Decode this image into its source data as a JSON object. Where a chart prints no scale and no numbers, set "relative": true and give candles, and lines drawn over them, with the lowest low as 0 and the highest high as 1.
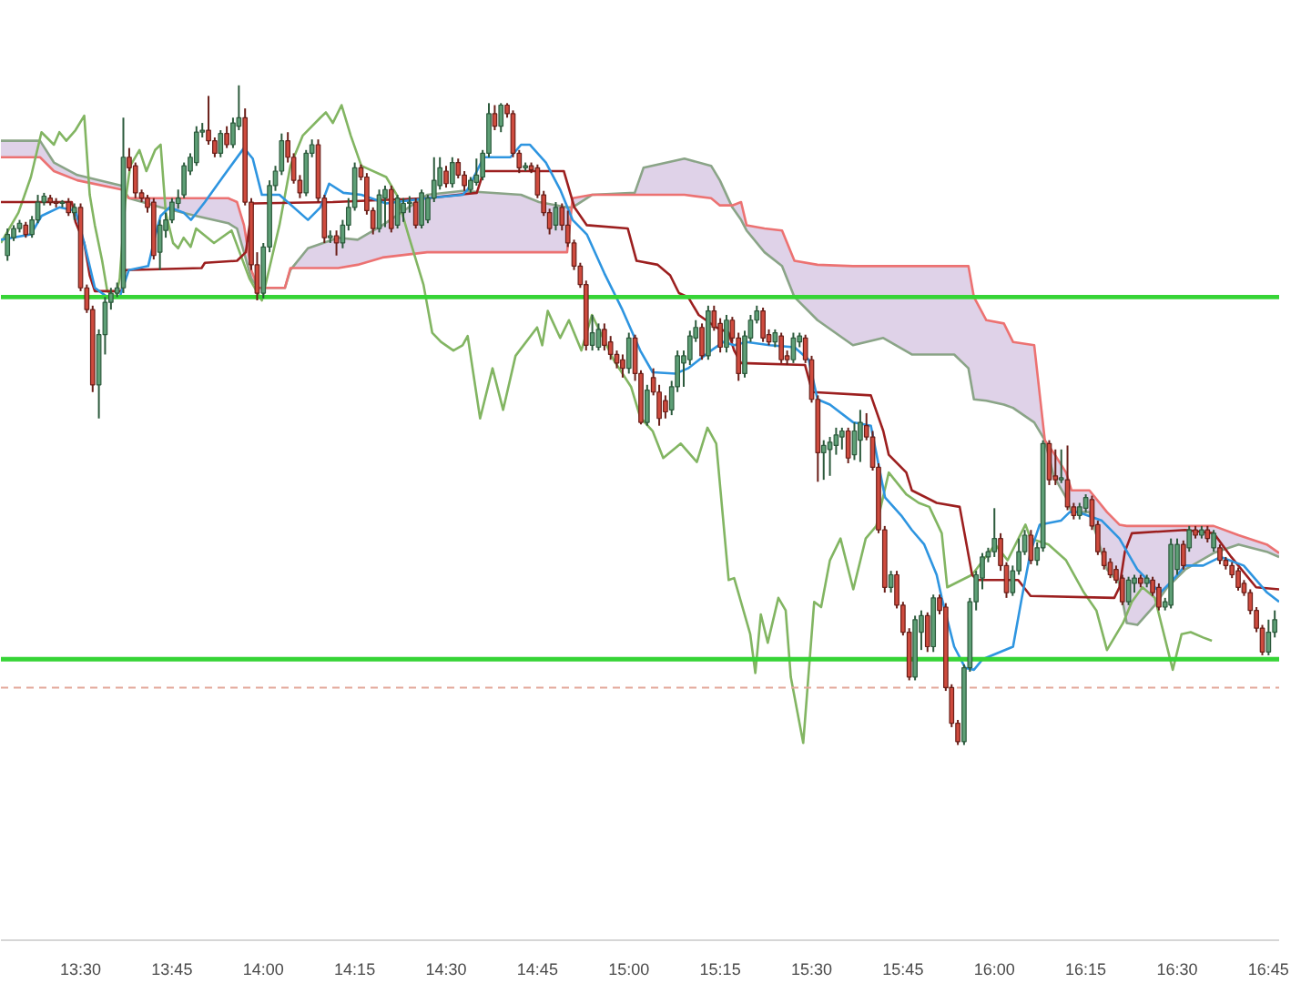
{
  "chart_data": {
    "type": "candlestick",
    "relative": true,
    "tick_labels": "x",
    "xlim": [
      13.282,
      16.779
    ],
    "xticks": [
      {
        "value": 13.5,
        "label": "13:30"
      },
      {
        "value": 13.75,
        "label": "13:45"
      },
      {
        "value": 14,
        "label": "14:00"
      },
      {
        "value": 14.25,
        "label": "14:15"
      },
      {
        "value": 14.5,
        "label": "14:30"
      },
      {
        "value": 14.75,
        "label": "14:45"
      },
      {
        "value": 15,
        "label": "15:00"
      },
      {
        "value": 15.25,
        "label": "15:15"
      },
      {
        "value": 15.5,
        "label": "15:30"
      },
      {
        "value": 15.75,
        "label": "15:45"
      },
      {
        "value": 16,
        "label": "16:00"
      },
      {
        "value": 16.25,
        "label": "16:15"
      },
      {
        "value": 16.5,
        "label": "16:30"
      },
      {
        "value": 16.75,
        "label": "16:45"
      }
    ],
    "x": [
      13.3,
      13.317,
      13.333,
      13.35,
      13.367,
      13.383,
      13.4,
      13.417,
      13.433,
      13.45,
      13.467,
      13.483,
      13.5,
      13.517,
      13.533,
      13.55,
      13.567,
      13.583,
      13.6,
      13.617,
      13.633,
      13.65,
      13.667,
      13.683,
      13.7,
      13.717,
      13.733,
      13.75,
      13.767,
      13.783,
      13.8,
      13.817,
      13.833,
      13.85,
      13.867,
      13.883,
      13.9,
      13.917,
      13.933,
      13.95,
      13.967,
      13.983,
      14.0,
      14.017,
      14.033,
      14.05,
      14.067,
      14.083,
      14.1,
      14.117,
      14.133,
      14.15,
      14.167,
      14.183,
      14.2,
      14.217,
      14.233,
      14.25,
      14.267,
      14.283,
      14.3,
      14.317,
      14.333,
      14.35,
      14.367,
      14.383,
      14.4,
      14.417,
      14.433,
      14.45,
      14.467,
      14.483,
      14.5,
      14.517,
      14.533,
      14.55,
      14.567,
      14.583,
      14.6,
      14.617,
      14.633,
      14.65,
      14.667,
      14.683,
      14.7,
      14.717,
      14.733,
      14.75,
      14.767,
      14.783,
      14.8,
      14.817,
      14.833,
      14.85,
      14.867,
      14.883,
      14.9,
      14.917,
      14.933,
      14.95,
      14.967,
      14.983,
      15.0,
      15.017,
      15.033,
      15.05,
      15.067,
      15.083,
      15.1,
      15.117,
      15.133,
      15.15,
      15.167,
      15.183,
      15.2,
      15.217,
      15.233,
      15.25,
      15.267,
      15.283,
      15.3,
      15.317,
      15.333,
      15.35,
      15.367,
      15.383,
      15.4,
      15.417,
      15.433,
      15.45,
      15.467,
      15.483,
      15.5,
      15.517,
      15.533,
      15.55,
      15.567,
      15.583,
      15.6,
      15.617,
      15.633,
      15.65,
      15.667,
      15.683,
      15.7,
      15.717,
      15.733,
      15.75,
      15.767,
      15.783,
      15.8,
      15.817,
      15.833,
      15.85,
      15.867,
      15.883,
      15.9,
      15.917,
      15.933,
      15.95,
      15.967,
      15.983,
      16.0,
      16.017,
      16.033,
      16.05,
      16.067,
      16.083,
      16.1,
      16.117,
      16.133,
      16.15,
      16.167,
      16.183,
      16.2,
      16.217,
      16.233,
      16.25,
      16.267,
      16.283,
      16.3,
      16.317,
      16.333,
      16.35,
      16.367,
      16.383,
      16.4,
      16.417,
      16.433,
      16.45,
      16.467,
      16.483,
      16.5,
      16.517,
      16.533,
      16.55,
      16.567,
      16.583,
      16.6,
      16.617,
      16.633,
      16.65,
      16.667,
      16.683,
      16.7,
      16.717,
      16.733,
      16.75,
      16.767
    ],
    "ohlc": [
      [
        0.742,
        0.783,
        0.734,
        0.774
      ],
      [
        0.769,
        0.788,
        0.764,
        0.783
      ],
      [
        0.783,
        0.796,
        0.777,
        0.791
      ],
      [
        0.788,
        0.793,
        0.769,
        0.774
      ],
      [
        0.774,
        0.802,
        0.769,
        0.796
      ],
      [
        0.796,
        0.834,
        0.791,
        0.823
      ],
      [
        0.823,
        0.837,
        0.818,
        0.832
      ],
      [
        0.829,
        0.834,
        0.818,
        0.823
      ],
      [
        0.823,
        0.829,
        0.815,
        0.821
      ],
      [
        0.821,
        0.826,
        0.815,
        0.823
      ],
      [
        0.823,
        0.829,
        0.802,
        0.807
      ],
      [
        0.807,
        0.821,
        0.796,
        0.815
      ],
      [
        0.815,
        0.821,
        0.688,
        0.693
      ],
      [
        0.693,
        0.698,
        0.655,
        0.66
      ],
      [
        0.66,
        0.666,
        0.535,
        0.546
      ],
      [
        0.546,
        0.63,
        0.495,
        0.622
      ],
      [
        0.622,
        0.679,
        0.592,
        0.671
      ],
      [
        0.671,
        0.693,
        0.66,
        0.685
      ],
      [
        0.685,
        0.701,
        0.679,
        0.693
      ],
      [
        0.693,
        0.951,
        0.685,
        0.891
      ],
      [
        0.891,
        0.905,
        0.87,
        0.875
      ],
      [
        0.878,
        0.883,
        0.829,
        0.837
      ],
      [
        0.837,
        0.842,
        0.823,
        0.829
      ],
      [
        0.829,
        0.834,
        0.807,
        0.815
      ],
      [
        0.823,
        0.829,
        0.736,
        0.742
      ],
      [
        0.747,
        0.796,
        0.72,
        0.788
      ],
      [
        0.78,
        0.807,
        0.769,
        0.796
      ],
      [
        0.796,
        0.829,
        0.791,
        0.823
      ],
      [
        0.821,
        0.842,
        0.813,
        0.829
      ],
      [
        0.834,
        0.883,
        0.829,
        0.878
      ],
      [
        0.87,
        0.897,
        0.864,
        0.891
      ],
      [
        0.883,
        0.938,
        0.878,
        0.929
      ],
      [
        0.929,
        0.943,
        0.921,
        0.932
      ],
      [
        0.932,
        0.984,
        0.91,
        0.916
      ],
      [
        0.916,
        0.921,
        0.891,
        0.897
      ],
      [
        0.897,
        0.932,
        0.891,
        0.927
      ],
      [
        0.927,
        0.938,
        0.905,
        0.91
      ],
      [
        0.91,
        0.951,
        0.905,
        0.943
      ],
      [
        0.938,
        1.0,
        0.932,
        0.951
      ],
      [
        0.951,
        0.965,
        0.818,
        0.823
      ],
      [
        0.823,
        0.829,
        0.72,
        0.728
      ],
      [
        0.728,
        0.747,
        0.674,
        0.685
      ],
      [
        0.685,
        0.761,
        0.677,
        0.755
      ],
      [
        0.755,
        0.856,
        0.747,
        0.848
      ],
      [
        0.848,
        0.878,
        0.84,
        0.87
      ],
      [
        0.87,
        0.927,
        0.864,
        0.916
      ],
      [
        0.916,
        0.929,
        0.883,
        0.891
      ],
      [
        0.891,
        0.897,
        0.851,
        0.856
      ],
      [
        0.856,
        0.864,
        0.829,
        0.837
      ],
      [
        0.837,
        0.902,
        0.832,
        0.897
      ],
      [
        0.897,
        0.918,
        0.891,
        0.91
      ],
      [
        0.91,
        0.918,
        0.823,
        0.829
      ],
      [
        0.829,
        0.834,
        0.761,
        0.769
      ],
      [
        0.769,
        0.78,
        0.761,
        0.772
      ],
      [
        0.772,
        0.78,
        0.742,
        0.761
      ],
      [
        0.761,
        0.796,
        0.753,
        0.788
      ],
      [
        0.788,
        0.829,
        0.78,
        0.815
      ],
      [
        0.815,
        0.883,
        0.81,
        0.875
      ],
      [
        0.875,
        0.88,
        0.856,
        0.861
      ],
      [
        0.861,
        0.867,
        0.804,
        0.81
      ],
      [
        0.81,
        0.815,
        0.774,
        0.783
      ],
      [
        0.783,
        0.842,
        0.777,
        0.834
      ],
      [
        0.829,
        0.848,
        0.785,
        0.842
      ],
      [
        0.842,
        0.848,
        0.777,
        0.783
      ],
      [
        0.788,
        0.834,
        0.783,
        0.829
      ],
      [
        0.807,
        0.829,
        0.793,
        0.821
      ],
      [
        0.821,
        0.832,
        0.807,
        0.823
      ],
      [
        0.823,
        0.829,
        0.783,
        0.788
      ],
      [
        0.788,
        0.842,
        0.783,
        0.837
      ],
      [
        0.796,
        0.834,
        0.791,
        0.829
      ],
      [
        0.829,
        0.891,
        0.823,
        0.856
      ],
      [
        0.848,
        0.891,
        0.842,
        0.875
      ],
      [
        0.87,
        0.878,
        0.845,
        0.851
      ],
      [
        0.851,
        0.891,
        0.845,
        0.883
      ],
      [
        0.883,
        0.889,
        0.859,
        0.864
      ],
      [
        0.864,
        0.87,
        0.84,
        0.848
      ],
      [
        0.842,
        0.861,
        0.837,
        0.856
      ],
      [
        0.853,
        0.889,
        0.848,
        0.864
      ],
      [
        0.861,
        0.902,
        0.856,
        0.897
      ],
      [
        0.897,
        0.973,
        0.891,
        0.957
      ],
      [
        0.957,
        0.97,
        0.932,
        0.938
      ],
      [
        0.938,
        0.973,
        0.929,
        0.97
      ],
      [
        0.97,
        0.973,
        0.951,
        0.957
      ],
      [
        0.957,
        0.962,
        0.891,
        0.897
      ],
      [
        0.897,
        0.902,
        0.867,
        0.875
      ],
      [
        0.875,
        0.883,
        0.87,
        0.878
      ],
      [
        0.878,
        0.883,
        0.867,
        0.872
      ],
      [
        0.875,
        0.88,
        0.829,
        0.834
      ],
      [
        0.834,
        0.84,
        0.802,
        0.807
      ],
      [
        0.807,
        0.813,
        0.774,
        0.783
      ],
      [
        0.788,
        0.823,
        0.78,
        0.815
      ],
      [
        0.815,
        0.821,
        0.78,
        0.788
      ],
      [
        0.788,
        0.81,
        0.755,
        0.761
      ],
      [
        0.761,
        0.766,
        0.72,
        0.726
      ],
      [
        0.726,
        0.731,
        0.693,
        0.698
      ],
      [
        0.698,
        0.704,
        0.598,
        0.606
      ],
      [
        0.606,
        0.652,
        0.598,
        0.625
      ],
      [
        0.603,
        0.639,
        0.598,
        0.63
      ],
      [
        0.63,
        0.639,
        0.598,
        0.606
      ],
      [
        0.611,
        0.62,
        0.584,
        0.592
      ],
      [
        0.592,
        0.598,
        0.571,
        0.579
      ],
      [
        0.584,
        0.592,
        0.557,
        0.571
      ],
      [
        0.571,
        0.625,
        0.563,
        0.617
      ],
      [
        0.617,
        0.622,
        0.552,
        0.563
      ],
      [
        0.563,
        0.568,
        0.486,
        0.489
      ],
      [
        0.489,
        0.546,
        0.484,
        0.538
      ],
      [
        0.557,
        0.571,
        0.53,
        0.535
      ],
      [
        0.535,
        0.546,
        0.484,
        0.495
      ],
      [
        0.522,
        0.53,
        0.495,
        0.505
      ],
      [
        0.508,
        0.552,
        0.5,
        0.543
      ],
      [
        0.543,
        0.598,
        0.535,
        0.59
      ],
      [
        0.579,
        0.598,
        0.543,
        0.59
      ],
      [
        0.584,
        0.628,
        0.576,
        0.62
      ],
      [
        0.617,
        0.644,
        0.611,
        0.633
      ],
      [
        0.633,
        0.639,
        0.584,
        0.59
      ],
      [
        0.59,
        0.666,
        0.584,
        0.658
      ],
      [
        0.658,
        0.666,
        0.628,
        0.633
      ],
      [
        0.639,
        0.647,
        0.595,
        0.603
      ],
      [
        0.603,
        0.652,
        0.595,
        0.644
      ],
      [
        0.644,
        0.649,
        0.611,
        0.617
      ],
      [
        0.617,
        0.625,
        0.552,
        0.563
      ],
      [
        0.563,
        0.628,
        0.557,
        0.62
      ],
      [
        0.617,
        0.652,
        0.611,
        0.644
      ],
      [
        0.644,
        0.666,
        0.639,
        0.658
      ],
      [
        0.658,
        0.663,
        0.611,
        0.617
      ],
      [
        0.622,
        0.63,
        0.606,
        0.611
      ],
      [
        0.611,
        0.63,
        0.603,
        0.625
      ],
      [
        0.62,
        0.625,
        0.579,
        0.584
      ],
      [
        0.59,
        0.598,
        0.576,
        0.584
      ],
      [
        0.584,
        0.625,
        0.579,
        0.617
      ],
      [
        0.611,
        0.625,
        0.603,
        0.62
      ],
      [
        0.617,
        0.622,
        0.579,
        0.584
      ],
      [
        0.584,
        0.59,
        0.519,
        0.524
      ],
      [
        0.524,
        0.53,
        0.399,
        0.443
      ],
      [
        0.443,
        0.462,
        0.402,
        0.454
      ],
      [
        0.448,
        0.467,
        0.408,
        0.459
      ],
      [
        0.454,
        0.481,
        0.44,
        0.47
      ],
      [
        0.467,
        0.481,
        0.448,
        0.476
      ],
      [
        0.476,
        0.481,
        0.427,
        0.435
      ],
      [
        0.44,
        0.489,
        0.432,
        0.476
      ],
      [
        0.462,
        0.508,
        0.429,
        0.489
      ],
      [
        0.484,
        0.503,
        0.462,
        0.467
      ],
      [
        0.467,
        0.476,
        0.416,
        0.421
      ],
      [
        0.421,
        0.427,
        0.321,
        0.326
      ],
      [
        0.326,
        0.332,
        0.231,
        0.239
      ],
      [
        0.239,
        0.264,
        0.231,
        0.258
      ],
      [
        0.258,
        0.264,
        0.207,
        0.212
      ],
      [
        0.212,
        0.217,
        0.166,
        0.171
      ],
      [
        0.171,
        0.177,
        0.098,
        0.103
      ],
      [
        0.103,
        0.196,
        0.098,
        0.19
      ],
      [
        0.171,
        0.204,
        0.144,
        0.196
      ],
      [
        0.196,
        0.201,
        0.141,
        0.149
      ],
      [
        0.149,
        0.228,
        0.141,
        0.223
      ],
      [
        0.223,
        0.228,
        0.198,
        0.204
      ],
      [
        0.209,
        0.215,
        0.082,
        0.087
      ],
      [
        0.087,
        0.092,
        0.027,
        0.033
      ],
      [
        0.033,
        0.038,
        0.0,
        0.005
      ],
      [
        0.005,
        0.122,
        0.0,
        0.117
      ],
      [
        0.117,
        0.223,
        0.111,
        0.217
      ],
      [
        0.217,
        0.264,
        0.204,
        0.258
      ],
      [
        0.253,
        0.291,
        0.236,
        0.285
      ],
      [
        0.285,
        0.299,
        0.277,
        0.293
      ],
      [
        0.293,
        0.359,
        0.285,
        0.313
      ],
      [
        0.313,
        0.321,
        0.264,
        0.272
      ],
      [
        0.272,
        0.277,
        0.223,
        0.231
      ],
      [
        0.231,
        0.272,
        0.226,
        0.264
      ],
      [
        0.264,
        0.313,
        0.258,
        0.293
      ],
      [
        0.293,
        0.326,
        0.288,
        0.318
      ],
      [
        0.318,
        0.326,
        0.274,
        0.28
      ],
      [
        0.28,
        0.307,
        0.272,
        0.299
      ],
      [
        0.299,
        0.462,
        0.293,
        0.457
      ],
      [
        0.457,
        0.462,
        0.394,
        0.402
      ],
      [
        0.408,
        0.448,
        0.394,
        0.402
      ],
      [
        0.402,
        0.448,
        0.397,
        0.405
      ],
      [
        0.402,
        0.454,
        0.356,
        0.361
      ],
      [
        0.361,
        0.367,
        0.342,
        0.348
      ],
      [
        0.348,
        0.367,
        0.342,
        0.361
      ],
      [
        0.359,
        0.38,
        0.353,
        0.375
      ],
      [
        0.372,
        0.378,
        0.326,
        0.332
      ],
      [
        0.334,
        0.34,
        0.288,
        0.293
      ],
      [
        0.293,
        0.299,
        0.266,
        0.272
      ],
      [
        0.277,
        0.283,
        0.253,
        0.258
      ],
      [
        0.266,
        0.272,
        0.245,
        0.25
      ],
      [
        0.253,
        0.258,
        0.212,
        0.217
      ],
      [
        0.217,
        0.255,
        0.212,
        0.25
      ],
      [
        0.245,
        0.258,
        0.231,
        0.253
      ],
      [
        0.253,
        0.258,
        0.239,
        0.245
      ],
      [
        0.245,
        0.258,
        0.239,
        0.253
      ],
      [
        0.25,
        0.255,
        0.226,
        0.231
      ],
      [
        0.239,
        0.245,
        0.204,
        0.209
      ],
      [
        0.209,
        0.223,
        0.204,
        0.217
      ],
      [
        0.212,
        0.313,
        0.207,
        0.304
      ],
      [
        0.266,
        0.313,
        0.258,
        0.304
      ],
      [
        0.304,
        0.31,
        0.266,
        0.272
      ],
      [
        0.299,
        0.332,
        0.293,
        0.326
      ],
      [
        0.326,
        0.332,
        0.313,
        0.318
      ],
      [
        0.318,
        0.332,
        0.313,
        0.326
      ],
      [
        0.326,
        0.332,
        0.307,
        0.313
      ],
      [
        0.299,
        0.326,
        0.293,
        0.321
      ],
      [
        0.299,
        0.304,
        0.274,
        0.28
      ],
      [
        0.28,
        0.285,
        0.266,
        0.272
      ],
      [
        0.272,
        0.277,
        0.253,
        0.258
      ],
      [
        0.264,
        0.269,
        0.234,
        0.239
      ],
      [
        0.245,
        0.25,
        0.226,
        0.231
      ],
      [
        0.231,
        0.236,
        0.198,
        0.204
      ],
      [
        0.204,
        0.209,
        0.171,
        0.177
      ],
      [
        0.177,
        0.182,
        0.136,
        0.141
      ],
      [
        0.141,
        0.19,
        0.136,
        0.171
      ],
      [
        0.171,
        0.204,
        0.163,
        0.19
      ]
    ],
    "series": [
      {
        "type": "line",
        "color": "#8aa487",
        "x": [
          13.282,
          13.389,
          13.427,
          13.491,
          13.612,
          13.632,
          13.719,
          13.816,
          13.904,
          13.928,
          13.947,
          13.967,
          13.986,
          14.059,
          14.074,
          14.122,
          14.205,
          14.258,
          14.326,
          14.448,
          14.545,
          14.705,
          14.754,
          14.831,
          14.846,
          14.899,
          15.016,
          15.04,
          15.152,
          15.225,
          15.249,
          15.283,
          15.307,
          15.322,
          15.371,
          15.419,
          15.453,
          15.516,
          15.613,
          15.696,
          15.774,
          15.89,
          15.929,
          15.944,
          15.978,
          16.026,
          16.051,
          16.109,
          16.138,
          16.162,
          16.196,
          16.211,
          16.26,
          16.308,
          16.342,
          16.362,
          16.391,
          16.439,
          16.473,
          16.522,
          16.6,
          16.668,
          16.745,
          16.779
        ],
        "values": [
          0.916,
          0.916,
          0.883,
          0.864,
          0.848,
          0.829,
          0.815,
          0.802,
          0.791,
          0.783,
          0.747,
          0.707,
          0.693,
          0.693,
          0.72,
          0.753,
          0.769,
          0.766,
          0.788,
          0.834,
          0.84,
          0.834,
          0.823,
          0.815,
          0.815,
          0.834,
          0.837,
          0.875,
          0.889,
          0.878,
          0.856,
          0.815,
          0.796,
          0.78,
          0.747,
          0.726,
          0.679,
          0.644,
          0.606,
          0.617,
          0.592,
          0.592,
          0.571,
          0.524,
          0.522,
          0.516,
          0.511,
          0.489,
          0.462,
          0.408,
          0.375,
          0.353,
          0.353,
          0.266,
          0.245,
          0.185,
          0.182,
          0.212,
          0.239,
          0.266,
          0.291,
          0.304,
          0.293,
          0.285
        ]
      },
      {
        "type": "line",
        "color": "#ec7272",
        "x": [
          13.282,
          13.389,
          13.427,
          13.491,
          13.612,
          13.632,
          13.719,
          13.816,
          13.904,
          13.928,
          13.947,
          13.967,
          13.986,
          14.059,
          14.074,
          14.122,
          14.205,
          14.258,
          14.326,
          14.448,
          14.545,
          14.705,
          14.754,
          14.831,
          14.846,
          14.899,
          15.016,
          15.04,
          15.152,
          15.225,
          15.249,
          15.283,
          15.307,
          15.322,
          15.371,
          15.419,
          15.453,
          15.516,
          15.613,
          15.696,
          15.774,
          15.89,
          15.929,
          15.944,
          15.978,
          16.026,
          16.051,
          16.109,
          16.138,
          16.162,
          16.196,
          16.211,
          16.26,
          16.308,
          16.342,
          16.362,
          16.391,
          16.439,
          16.473,
          16.522,
          16.6,
          16.668,
          16.745,
          16.779
        ],
        "values": [
          0.891,
          0.891,
          0.87,
          0.856,
          0.842,
          0.829,
          0.829,
          0.829,
          0.829,
          0.823,
          0.788,
          0.72,
          0.693,
          0.693,
          0.723,
          0.723,
          0.723,
          0.728,
          0.739,
          0.747,
          0.747,
          0.747,
          0.747,
          0.747,
          0.829,
          0.834,
          0.834,
          0.834,
          0.834,
          0.829,
          0.818,
          0.818,
          0.823,
          0.788,
          0.783,
          0.78,
          0.734,
          0.728,
          0.726,
          0.726,
          0.726,
          0.726,
          0.726,
          0.679,
          0.644,
          0.639,
          0.611,
          0.606,
          0.462,
          0.443,
          0.413,
          0.386,
          0.386,
          0.353,
          0.334,
          0.332,
          0.332,
          0.332,
          0.332,
          0.332,
          0.332,
          0.318,
          0.304,
          0.291
        ],
        "lower": [
          0.916,
          0.916,
          0.883,
          0.864,
          0.848,
          0.829,
          0.815,
          0.802,
          0.791,
          0.783,
          0.747,
          0.707,
          0.693,
          0.693,
          0.72,
          0.753,
          0.769,
          0.766,
          0.788,
          0.834,
          0.84,
          0.834,
          0.823,
          0.815,
          0.815,
          0.834,
          0.837,
          0.875,
          0.889,
          0.878,
          0.856,
          0.815,
          0.796,
          0.78,
          0.747,
          0.726,
          0.679,
          0.644,
          0.606,
          0.617,
          0.592,
          0.592,
          0.571,
          0.524,
          0.522,
          0.516,
          0.511,
          0.489,
          0.462,
          0.408,
          0.375,
          0.353,
          0.353,
          0.266,
          0.245,
          0.185,
          0.182,
          0.212,
          0.239,
          0.266,
          0.291,
          0.304,
          0.293,
          0.285
        ],
        "upper": [
          0.891,
          0.891,
          0.87,
          0.856,
          0.842,
          0.829,
          0.829,
          0.829,
          0.829,
          0.823,
          0.788,
          0.72,
          0.693,
          0.693,
          0.723,
          0.723,
          0.723,
          0.728,
          0.739,
          0.747,
          0.747,
          0.747,
          0.747,
          0.747,
          0.829,
          0.834,
          0.834,
          0.834,
          0.834,
          0.829,
          0.818,
          0.818,
          0.823,
          0.788,
          0.783,
          0.78,
          0.734,
          0.728,
          0.726,
          0.726,
          0.726,
          0.726,
          0.726,
          0.679,
          0.644,
          0.639,
          0.611,
          0.606,
          0.462,
          0.443,
          0.413,
          0.386,
          0.386,
          0.353,
          0.334,
          0.332,
          0.332,
          0.332,
          0.332,
          0.332,
          0.332,
          0.318,
          0.304,
          0.291
        ]
      },
      {
        "type": "line",
        "color": "#82b562",
        "x": [
          13.282,
          13.33,
          13.364,
          13.393,
          13.427,
          13.442,
          13.461,
          13.486,
          13.51,
          13.525,
          13.539,
          13.559,
          13.573,
          13.597,
          13.607,
          13.622,
          13.636,
          13.661,
          13.68,
          13.704,
          13.719,
          13.733,
          13.753,
          13.767,
          13.782,
          13.801,
          13.816,
          13.865,
          13.913,
          13.962,
          13.996,
          14.044,
          14.074,
          14.108,
          14.156,
          14.171,
          14.19,
          14.214,
          14.239,
          14.268,
          14.336,
          14.365,
          14.399,
          14.438,
          14.462,
          14.486,
          14.52,
          14.545,
          14.559,
          14.593,
          14.627,
          14.656,
          14.69,
          14.749,
          14.763,
          14.778,
          14.812,
          14.836,
          14.87,
          14.899,
          14.958,
          15.006,
          15.031,
          15.065,
          15.094,
          15.142,
          15.186,
          15.215,
          15.239,
          15.273,
          15.288,
          15.332,
          15.346,
          15.361,
          15.38,
          15.409,
          15.429,
          15.443,
          15.477,
          15.507,
          15.526,
          15.55,
          15.579,
          15.614,
          15.648,
          15.677,
          15.711,
          15.759,
          15.793,
          15.822,
          15.856,
          15.871,
          15.939,
          16.002,
          16.036,
          16.085,
          16.099,
          16.148,
          16.196,
          16.245,
          16.279,
          16.308,
          16.352,
          16.376,
          16.405,
          16.439,
          16.488,
          16.512,
          16.537,
          16.571,
          16.595
        ],
        "values": [
          0.761,
          0.807,
          0.861,
          0.929,
          0.91,
          0.929,
          0.916,
          0.932,
          0.954,
          0.834,
          0.788,
          0.734,
          0.688,
          0.679,
          0.707,
          0.823,
          0.878,
          0.902,
          0.87,
          0.902,
          0.91,
          0.807,
          0.761,
          0.753,
          0.769,
          0.755,
          0.783,
          0.761,
          0.78,
          0.707,
          0.674,
          0.788,
          0.878,
          0.924,
          0.951,
          0.959,
          0.943,
          0.97,
          0.924,
          0.878,
          0.861,
          0.834,
          0.769,
          0.698,
          0.625,
          0.611,
          0.598,
          0.606,
          0.62,
          0.495,
          0.571,
          0.508,
          0.59,
          0.633,
          0.606,
          0.658,
          0.617,
          0.644,
          0.598,
          0.652,
          0.584,
          0.543,
          0.497,
          0.476,
          0.435,
          0.457,
          0.429,
          0.481,
          0.457,
          0.25,
          0.253,
          0.168,
          0.109,
          0.198,
          0.155,
          0.223,
          0.204,
          0.103,
          0.003,
          0.217,
          0.209,
          0.28,
          0.313,
          0.236,
          0.313,
          0.332,
          0.413,
          0.38,
          0.367,
          0.361,
          0.321,
          0.239,
          0.258,
          0.304,
          0.28,
          0.334,
          0.313,
          0.304,
          0.28,
          0.231,
          0.204,
          0.144,
          0.185,
          0.217,
          0.239,
          0.223,
          0.114,
          0.168,
          0.171,
          0.163,
          0.158
        ]
      },
      {
        "type": "line",
        "color": "#9c1f1f",
        "x": [
          13.282,
          13.476,
          13.486,
          13.51,
          13.525,
          13.539,
          13.612,
          13.622,
          13.831,
          13.84,
          13.928,
          13.952,
          13.971,
          14.19,
          14.448,
          14.584,
          14.603,
          14.822,
          14.851,
          14.885,
          14.997,
          15.021,
          15.079,
          15.113,
          15.137,
          15.162,
          15.191,
          15.239,
          15.273,
          15.288,
          15.307,
          15.482,
          15.502,
          15.662,
          15.696,
          15.711,
          15.759,
          15.774,
          15.842,
          15.905,
          15.939,
          15.953,
          16.065,
          16.099,
          16.328,
          16.342,
          16.357,
          16.376,
          16.522,
          16.6,
          16.648,
          16.716,
          16.779
        ],
        "values": [
          0.823,
          0.823,
          0.793,
          0.761,
          0.712,
          0.688,
          0.688,
          0.72,
          0.723,
          0.731,
          0.734,
          0.747,
          0.821,
          0.823,
          0.829,
          0.837,
          0.87,
          0.87,
          0.815,
          0.788,
          0.783,
          0.734,
          0.728,
          0.712,
          0.685,
          0.679,
          0.652,
          0.633,
          0.625,
          0.598,
          0.579,
          0.576,
          0.535,
          0.53,
          0.476,
          0.44,
          0.413,
          0.386,
          0.367,
          0.361,
          0.258,
          0.25,
          0.25,
          0.226,
          0.223,
          0.239,
          0.293,
          0.321,
          0.326,
          0.321,
          0.285,
          0.239,
          0.236
        ]
      },
      {
        "type": "line",
        "color": "#2e95e0",
        "x": [
          13.282,
          13.364,
          13.393,
          13.442,
          13.486,
          13.51,
          13.539,
          13.573,
          13.607,
          13.632,
          13.685,
          13.704,
          13.719,
          13.743,
          13.782,
          13.802,
          13.84,
          13.889,
          13.947,
          13.971,
          13.996,
          14.044,
          14.122,
          14.156,
          14.18,
          14.219,
          14.268,
          14.336,
          14.448,
          14.545,
          14.559,
          14.603,
          14.676,
          14.705,
          14.729,
          14.773,
          14.812,
          14.846,
          14.885,
          14.933,
          14.982,
          15.031,
          15.065,
          15.128,
          15.162,
          15.225,
          15.259,
          15.288,
          15.322,
          15.385,
          15.453,
          15.492,
          15.516,
          15.55,
          15.614,
          15.662,
          15.701,
          15.745,
          15.774,
          15.808,
          15.842,
          15.856,
          15.89,
          15.92,
          15.944,
          15.968,
          16.051,
          16.075,
          16.099,
          16.124,
          16.182,
          16.206,
          16.23,
          16.294,
          16.342,
          16.391,
          16.439,
          16.454,
          16.488,
          16.522,
          16.571,
          16.619,
          16.682,
          16.746,
          16.779
        ],
        "values": [
          0.766,
          0.774,
          0.802,
          0.815,
          0.81,
          0.761,
          0.693,
          0.679,
          0.679,
          0.72,
          0.726,
          0.772,
          0.802,
          0.815,
          0.807,
          0.796,
          0.823,
          0.861,
          0.905,
          0.889,
          0.834,
          0.834,
          0.796,
          0.815,
          0.851,
          0.837,
          0.834,
          0.821,
          0.829,
          0.834,
          0.842,
          0.891,
          0.891,
          0.91,
          0.91,
          0.883,
          0.842,
          0.796,
          0.774,
          0.715,
          0.66,
          0.598,
          0.565,
          0.563,
          0.571,
          0.598,
          0.611,
          0.606,
          0.611,
          0.606,
          0.603,
          0.584,
          0.524,
          0.516,
          0.489,
          0.484,
          0.375,
          0.348,
          0.326,
          0.304,
          0.258,
          0.223,
          0.149,
          0.117,
          0.114,
          0.13,
          0.149,
          0.223,
          0.293,
          0.334,
          0.34,
          0.353,
          0.353,
          0.34,
          0.313,
          0.266,
          0.239,
          0.231,
          0.25,
          0.272,
          0.272,
          0.285,
          0.272,
          0.231,
          0.217
        ]
      }
    ],
    "ref_lines": [
      {
        "axis": "y",
        "value": 0.679,
        "color": "#36d436"
      },
      {
        "axis": "y",
        "value": 0.13,
        "color": "#36d436"
      },
      {
        "axis": "y",
        "value": 0.087,
        "color": "#e3a89a",
        "line_style": "dashed"
      }
    ]
  }
}
